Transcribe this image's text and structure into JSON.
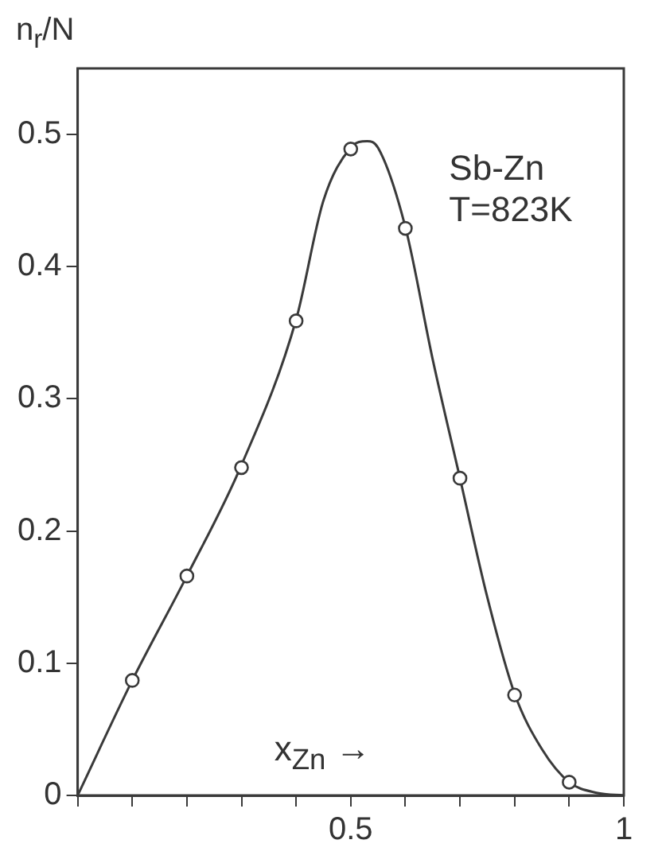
{
  "chart_data": {
    "type": "line",
    "ylabel": "n$_{r}$/N",
    "xlabel": "x$_{Zn}$ →",
    "annotations": [
      "Sb-Zn",
      "T=823K"
    ],
    "xlim": [
      0,
      1
    ],
    "ylim": [
      0,
      0.55
    ],
    "xticks": [
      {
        "value": 0,
        "label": null
      },
      {
        "value": 0.1,
        "label": null
      },
      {
        "value": 0.2,
        "label": null
      },
      {
        "value": 0.3,
        "label": null
      },
      {
        "value": 0.4,
        "label": null
      },
      {
        "value": 0.5,
        "label": "0.5"
      },
      {
        "value": 0.6,
        "label": null
      },
      {
        "value": 0.7,
        "label": null
      },
      {
        "value": 0.8,
        "label": null
      },
      {
        "value": 0.9,
        "label": null
      },
      {
        "value": 1,
        "label": "1"
      }
    ],
    "yticks": [
      0,
      0.1,
      0.2,
      0.3,
      0.4,
      0.5
    ],
    "series": [
      {
        "marker": "none",
        "color": "#3a3a3a",
        "x": [
          0,
          0.1,
          0.2,
          0.3,
          0.4,
          0.45,
          0.5,
          0.53,
          0.55,
          0.6,
          0.65,
          0.7,
          0.75,
          0.8,
          0.85,
          0.9,
          0.95,
          1
        ],
        "values": [
          0,
          0.087,
          0.166,
          0.25,
          0.36,
          0.45,
          0.49,
          0.495,
          0.49,
          0.43,
          0.33,
          0.24,
          0.15,
          0.077,
          0.035,
          0.01,
          0.002,
          0
        ]
      },
      {
        "type": "scatter",
        "marker": "circle",
        "color": "#3a3a3a",
        "x": [
          0.1,
          0.2,
          0.3,
          0.4,
          0.5,
          0.6,
          0.7,
          0.8,
          0.9
        ],
        "values": [
          0.087,
          0.166,
          0.248,
          0.359,
          0.489,
          0.429,
          0.24,
          0.076,
          0.01
        ]
      }
    ]
  }
}
